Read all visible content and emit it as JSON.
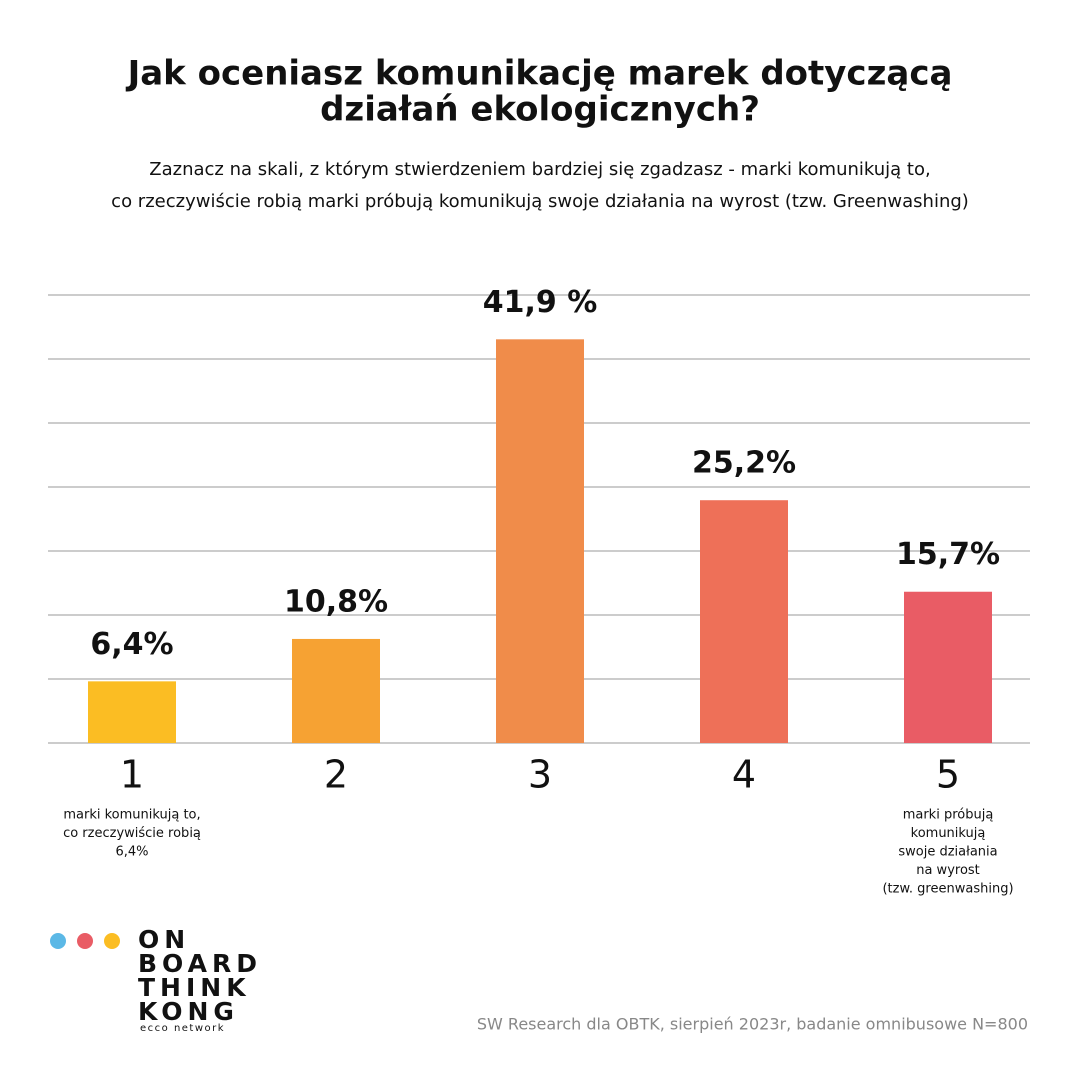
{
  "chart_data": {
    "type": "bar",
    "title": [
      "Jak oceniasz komunikację marek dotyczącą",
      "działań ekologicznych?"
    ],
    "subtitle": [
      "Zaznacz na skali, z którym stwierdzeniem bardziej się zgadzasz - marki komunikują to,",
      "co rzeczywiście robią marki próbują komunikują swoje działania na wyrost (tzw. Greenwashing)"
    ],
    "categories": [
      "1",
      "2",
      "3",
      "4",
      "5"
    ],
    "values": [
      6.4,
      10.8,
      41.9,
      25.2,
      15.7
    ],
    "value_labels": [
      "6,4%",
      "10,8%",
      "41,9 %",
      "25,2%",
      "15,7%"
    ],
    "colors": [
      "#fbbd23",
      "#f6a233",
      "#f08c4a",
      "#ee7058",
      "#e95c65"
    ],
    "ylim": [
      0,
      46.5
    ],
    "annotations": {
      "left": [
        "marki komunikują to,",
        "co rzeczywiście robią",
        "6,4%"
      ],
      "right": [
        "marki próbują",
        "komunikują",
        "swoje działania",
        "na wyrost",
        "(tzw. greenwashing)"
      ]
    },
    "source": "SW Research dla OBTK, sierpień 2023r, badanie omnibusowe N=800"
  },
  "logo": {
    "lines": [
      "ON",
      "BOARD",
      "THINK",
      "KONG"
    ],
    "tagline": "ecco network"
  }
}
